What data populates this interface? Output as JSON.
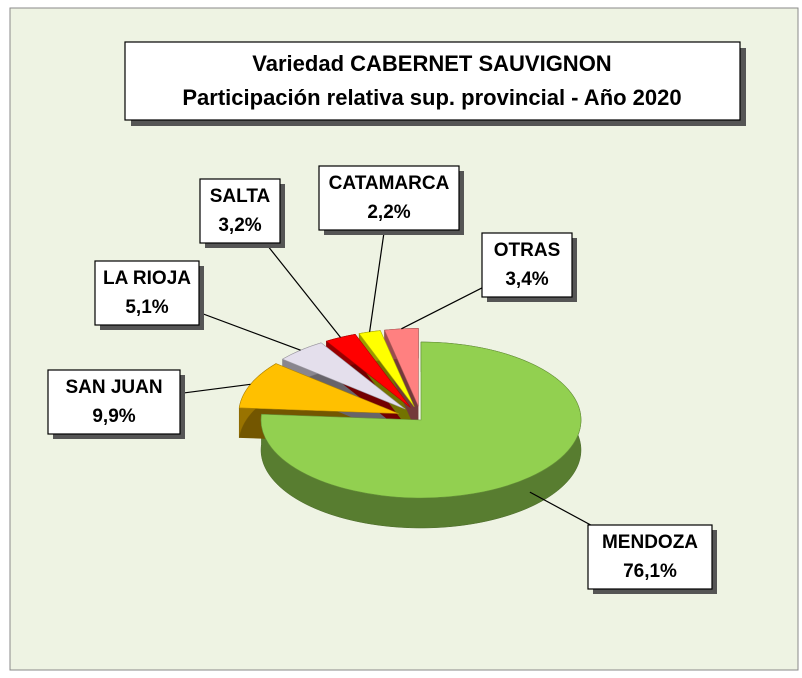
{
  "chart_data": {
    "type": "pie",
    "title": "Variedad CABERNET SAUVIGNON",
    "subtitle": "Participación relativa sup. provincial - Año 2020",
    "categories": [
      "MENDOZA",
      "SAN JUAN",
      "LA RIOJA",
      "SALTA",
      "CATAMARCA",
      "OTRAS"
    ],
    "values": [
      76.1,
      9.9,
      5.1,
      3.2,
      2.2,
      3.4
    ],
    "value_labels": [
      "76,1%",
      "9,9%",
      "5,1%",
      "3,2%",
      "2,2%",
      "3,4%"
    ],
    "colors": [
      "#92d050",
      "#ffc000",
      "#e4dfec",
      "#ff0000",
      "#ffff00",
      "#ff8080"
    ]
  }
}
